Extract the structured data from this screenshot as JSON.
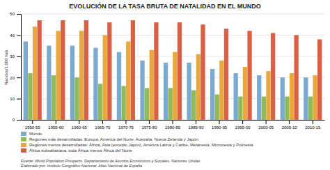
{
  "chart_data": {
    "type": "bar",
    "title": "EVOLUCIÓN DE LA TASA BRUTA DE NATALIDAD EN EL MUNDO",
    "y_label": "Nacidos/1.000 hab.",
    "categories": [
      "1950-55",
      "1955-60",
      "1960-65",
      "1965-70",
      "1970-75",
      "1975-80",
      "1980-85",
      "1985-90",
      "1990-95",
      "1995-00",
      "2000-05",
      "2005-10",
      "2010-15"
    ],
    "series": [
      {
        "name": "Mundo",
        "color": "#7aaad0",
        "values": [
          37,
          35,
          35,
          34,
          32,
          28,
          27,
          27,
          24,
          22,
          21,
          20,
          20
        ]
      },
      {
        "name": "Regiones más desarrolladas: Europa, América del Norte, Australia, Nueva Zelanda y Japón",
        "color": "#8fbb5a",
        "values": [
          22,
          21,
          20,
          17,
          16,
          15,
          15,
          14,
          12,
          11,
          11,
          11,
          11
        ]
      },
      {
        "name": "Regiones menos desarrolladas: África, Asia (excepto Japón), América Latina y Caribe, Melanesia, Micronesia y Polinesia",
        "color": "#e8a83e",
        "values": [
          44,
          42,
          42,
          40,
          37,
          33,
          32,
          31,
          28,
          25,
          23,
          22,
          21
        ]
      },
      {
        "name": "África subsahariana: toda África menos África del Norte",
        "color": "#d95f45",
        "values": [
          47,
          47,
          47,
          46,
          47,
          46,
          46,
          45,
          43,
          42,
          41,
          40,
          38
        ]
      }
    ],
    "ylim": [
      0,
      50
    ],
    "yticks": [
      0,
      10,
      20,
      30,
      40,
      50
    ],
    "grid": true,
    "legend": "bottom",
    "annotations": [
      "Fuente: World Population Prospects. Departamento de Asuntos Económicos y Sociales. Naciones Unidas",
      "Elaborado por: Instituto Geográfico Nacional. Atlas Nacional de España"
    ]
  }
}
